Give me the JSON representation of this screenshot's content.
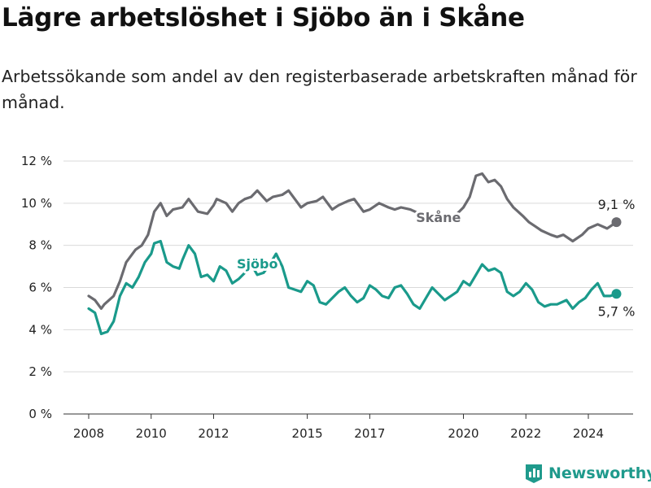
{
  "title": "Lägre arbetslöshet i Sjöbo än i Skåne",
  "subtitle": "Arbetssökande som andel av den registerbaserade arbetskraften månad för månad.",
  "brand": {
    "name": "Newsworthy",
    "icon": "newsworthy-logo-icon"
  },
  "colors": {
    "skane": "#6b6b70",
    "sjobo": "#1a9a8b",
    "grid": "#d9d9d9",
    "axis": "#333333"
  },
  "chart_data": {
    "type": "line",
    "title": "Lägre arbetslöshet i Sjöbo än i Skåne",
    "xlabel": "",
    "ylabel": "",
    "xlim": [
      2008,
      2025.25
    ],
    "ylim": [
      0,
      12
    ],
    "grid": true,
    "x_ticks": [
      2008,
      2010,
      2012,
      2015,
      2017,
      2020,
      2022,
      2024
    ],
    "x_tick_labels": [
      "2008",
      "2010",
      "2012",
      "2015",
      "2017",
      "2020",
      "2022",
      "2024"
    ],
    "y_ticks": [
      0,
      2,
      4,
      6,
      8,
      10,
      12
    ],
    "y_tick_labels": [
      "0 %",
      "2 %",
      "4 %",
      "6 %",
      "8 %",
      "10 %",
      "12 %"
    ],
    "series": [
      {
        "name": "Skåne",
        "end_label": "9,1 %",
        "points": [
          [
            2008.0,
            5.6
          ],
          [
            2008.2,
            5.4
          ],
          [
            2008.4,
            5.0
          ],
          [
            2008.5,
            5.2
          ],
          [
            2008.8,
            5.6
          ],
          [
            2009.0,
            6.3
          ],
          [
            2009.2,
            7.2
          ],
          [
            2009.5,
            7.8
          ],
          [
            2009.7,
            8.0
          ],
          [
            2009.9,
            8.5
          ],
          [
            2010.1,
            9.6
          ],
          [
            2010.3,
            10.0
          ],
          [
            2010.5,
            9.4
          ],
          [
            2010.7,
            9.7
          ],
          [
            2011.0,
            9.8
          ],
          [
            2011.2,
            10.2
          ],
          [
            2011.5,
            9.6
          ],
          [
            2011.8,
            9.5
          ],
          [
            2012.0,
            9.9
          ],
          [
            2012.1,
            10.2
          ],
          [
            2012.4,
            10.0
          ],
          [
            2012.6,
            9.6
          ],
          [
            2012.8,
            10.0
          ],
          [
            2013.0,
            10.2
          ],
          [
            2013.2,
            10.3
          ],
          [
            2013.4,
            10.6
          ],
          [
            2013.7,
            10.1
          ],
          [
            2013.9,
            10.3
          ],
          [
            2014.2,
            10.4
          ],
          [
            2014.4,
            10.6
          ],
          [
            2014.6,
            10.2
          ],
          [
            2014.8,
            9.8
          ],
          [
            2015.0,
            10.0
          ],
          [
            2015.3,
            10.1
          ],
          [
            2015.5,
            10.3
          ],
          [
            2015.8,
            9.7
          ],
          [
            2016.0,
            9.9
          ],
          [
            2016.3,
            10.1
          ],
          [
            2016.5,
            10.2
          ],
          [
            2016.8,
            9.6
          ],
          [
            2017.0,
            9.7
          ],
          [
            2017.3,
            10.0
          ],
          [
            2017.6,
            9.8
          ],
          [
            2017.8,
            9.7
          ],
          [
            2018.0,
            9.8
          ],
          [
            2018.3,
            9.7
          ],
          [
            2018.6,
            9.5
          ],
          [
            2018.9,
            9.3
          ],
          [
            2019.2,
            9.1
          ],
          [
            2019.5,
            9.3
          ],
          [
            2019.8,
            9.5
          ],
          [
            2020.0,
            9.8
          ],
          [
            2020.2,
            10.3
          ],
          [
            2020.4,
            11.3
          ],
          [
            2020.6,
            11.4
          ],
          [
            2020.8,
            11.0
          ],
          [
            2021.0,
            11.1
          ],
          [
            2021.2,
            10.8
          ],
          [
            2021.4,
            10.2
          ],
          [
            2021.6,
            9.8
          ],
          [
            2021.9,
            9.4
          ],
          [
            2022.1,
            9.1
          ],
          [
            2022.3,
            8.9
          ],
          [
            2022.5,
            8.7
          ],
          [
            2022.8,
            8.5
          ],
          [
            2023.0,
            8.4
          ],
          [
            2023.2,
            8.5
          ],
          [
            2023.5,
            8.2
          ],
          [
            2023.8,
            8.5
          ],
          [
            2024.0,
            8.8
          ],
          [
            2024.3,
            9.0
          ],
          [
            2024.6,
            8.8
          ],
          [
            2024.9,
            9.1
          ]
        ]
      },
      {
        "name": "Sjöbo",
        "end_label": "5,7 %",
        "points": [
          [
            2008.0,
            5.0
          ],
          [
            2008.2,
            4.8
          ],
          [
            2008.4,
            3.8
          ],
          [
            2008.6,
            3.9
          ],
          [
            2008.8,
            4.4
          ],
          [
            2009.0,
            5.6
          ],
          [
            2009.2,
            6.2
          ],
          [
            2009.4,
            6.0
          ],
          [
            2009.6,
            6.5
          ],
          [
            2009.8,
            7.2
          ],
          [
            2010.0,
            7.6
          ],
          [
            2010.1,
            8.1
          ],
          [
            2010.3,
            8.2
          ],
          [
            2010.5,
            7.2
          ],
          [
            2010.7,
            7.0
          ],
          [
            2010.9,
            6.9
          ],
          [
            2011.0,
            7.3
          ],
          [
            2011.2,
            8.0
          ],
          [
            2011.4,
            7.6
          ],
          [
            2011.6,
            6.5
          ],
          [
            2011.8,
            6.6
          ],
          [
            2012.0,
            6.3
          ],
          [
            2012.2,
            7.0
          ],
          [
            2012.4,
            6.8
          ],
          [
            2012.6,
            6.2
          ],
          [
            2012.8,
            6.4
          ],
          [
            2013.0,
            6.7
          ],
          [
            2013.2,
            7.1
          ],
          [
            2013.4,
            6.6
          ],
          [
            2013.6,
            6.7
          ],
          [
            2013.8,
            7.1
          ],
          [
            2014.0,
            7.6
          ],
          [
            2014.2,
            7.0
          ],
          [
            2014.4,
            6.0
          ],
          [
            2014.6,
            5.9
          ],
          [
            2014.8,
            5.8
          ],
          [
            2015.0,
            6.3
          ],
          [
            2015.2,
            6.1
          ],
          [
            2015.4,
            5.3
          ],
          [
            2015.6,
            5.2
          ],
          [
            2015.8,
            5.5
          ],
          [
            2016.0,
            5.8
          ],
          [
            2016.2,
            6.0
          ],
          [
            2016.4,
            5.6
          ],
          [
            2016.6,
            5.3
          ],
          [
            2016.8,
            5.5
          ],
          [
            2017.0,
            6.1
          ],
          [
            2017.2,
            5.9
          ],
          [
            2017.4,
            5.6
          ],
          [
            2017.6,
            5.5
          ],
          [
            2017.8,
            6.0
          ],
          [
            2018.0,
            6.1
          ],
          [
            2018.2,
            5.7
          ],
          [
            2018.4,
            5.2
          ],
          [
            2018.6,
            5.0
          ],
          [
            2018.8,
            5.5
          ],
          [
            2019.0,
            6.0
          ],
          [
            2019.2,
            5.7
          ],
          [
            2019.4,
            5.4
          ],
          [
            2019.6,
            5.6
          ],
          [
            2019.8,
            5.8
          ],
          [
            2020.0,
            6.3
          ],
          [
            2020.2,
            6.1
          ],
          [
            2020.4,
            6.6
          ],
          [
            2020.6,
            7.1
          ],
          [
            2020.8,
            6.8
          ],
          [
            2021.0,
            6.9
          ],
          [
            2021.2,
            6.7
          ],
          [
            2021.4,
            5.8
          ],
          [
            2021.6,
            5.6
          ],
          [
            2021.8,
            5.8
          ],
          [
            2022.0,
            6.2
          ],
          [
            2022.2,
            5.9
          ],
          [
            2022.4,
            5.3
          ],
          [
            2022.6,
            5.1
          ],
          [
            2022.8,
            5.2
          ],
          [
            2023.0,
            5.2
          ],
          [
            2023.3,
            5.4
          ],
          [
            2023.5,
            5.0
          ],
          [
            2023.7,
            5.3
          ],
          [
            2023.9,
            5.5
          ],
          [
            2024.1,
            5.9
          ],
          [
            2024.3,
            6.2
          ],
          [
            2024.5,
            5.6
          ],
          [
            2024.7,
            5.6
          ],
          [
            2024.9,
            5.7
          ]
        ]
      }
    ],
    "annotations": [
      {
        "text": "Skåne",
        "series": "Skåne",
        "x": 2019.2,
        "y": 9.1
      },
      {
        "text": "Sjöbo",
        "series": "Sjöbo",
        "x": 2013.4,
        "y": 6.9
      }
    ]
  }
}
